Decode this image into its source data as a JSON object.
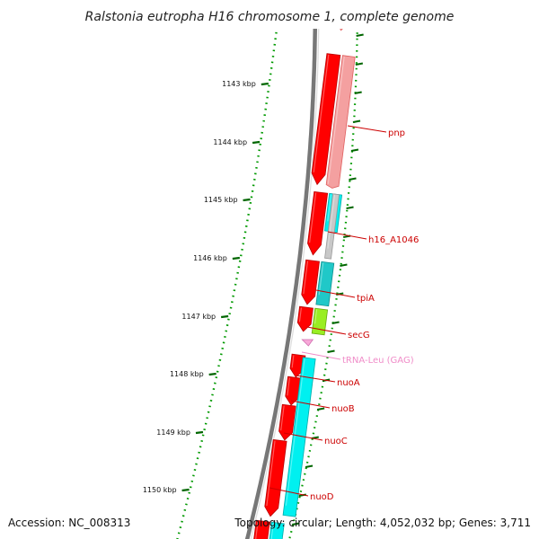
{
  "title": "Ralstonia eutropha H16 chromosome 1, complete genome",
  "accession": "Accession: NC_008313",
  "summary": "Topology: circular; Length: 4,052,032 bp; Genes: 3,711",
  "colors": {
    "backbone": "#777777",
    "cds": "#ff0000",
    "cds_dark": "#b80000",
    "cds_pale": "#f4a0a0",
    "cds_pale_edge": "#e06060",
    "teal": "#20c8c8",
    "cyan": "#00f0f0",
    "grey_feature": "#c8c8c8",
    "green_feature": "#99ee22",
    "trna": "#f7a8d8",
    "blue_feature": "#3d7fbf",
    "ruler_dots": "#009900",
    "ruler_ticks": "#006600",
    "gene_label": "#cc0000",
    "trna_label": "#f08cc8"
  },
  "ruler": {
    "unit": "kbp",
    "ticks": [
      {
        "label": "1143 kbp"
      },
      {
        "label": "1144 kbp"
      },
      {
        "label": "1145 kbp"
      },
      {
        "label": "1146 kbp"
      },
      {
        "label": "1147 kbp"
      },
      {
        "label": "1148 kbp"
      },
      {
        "label": "1149 kbp"
      },
      {
        "label": "1150 kbp"
      }
    ]
  },
  "gene_labels": [
    {
      "name": "pnp",
      "kind": "cds"
    },
    {
      "name": "h16_A1046",
      "kind": "cds"
    },
    {
      "name": "tpiA",
      "kind": "cds"
    },
    {
      "name": "secG",
      "kind": "cds"
    },
    {
      "name": "tRNA-Leu (GAG)",
      "kind": "trna"
    },
    {
      "name": "nuoA",
      "kind": "cds"
    },
    {
      "name": "nuoB",
      "kind": "cds"
    },
    {
      "name": "nuoC",
      "kind": "cds"
    },
    {
      "name": "nuoD",
      "kind": "cds"
    }
  ]
}
